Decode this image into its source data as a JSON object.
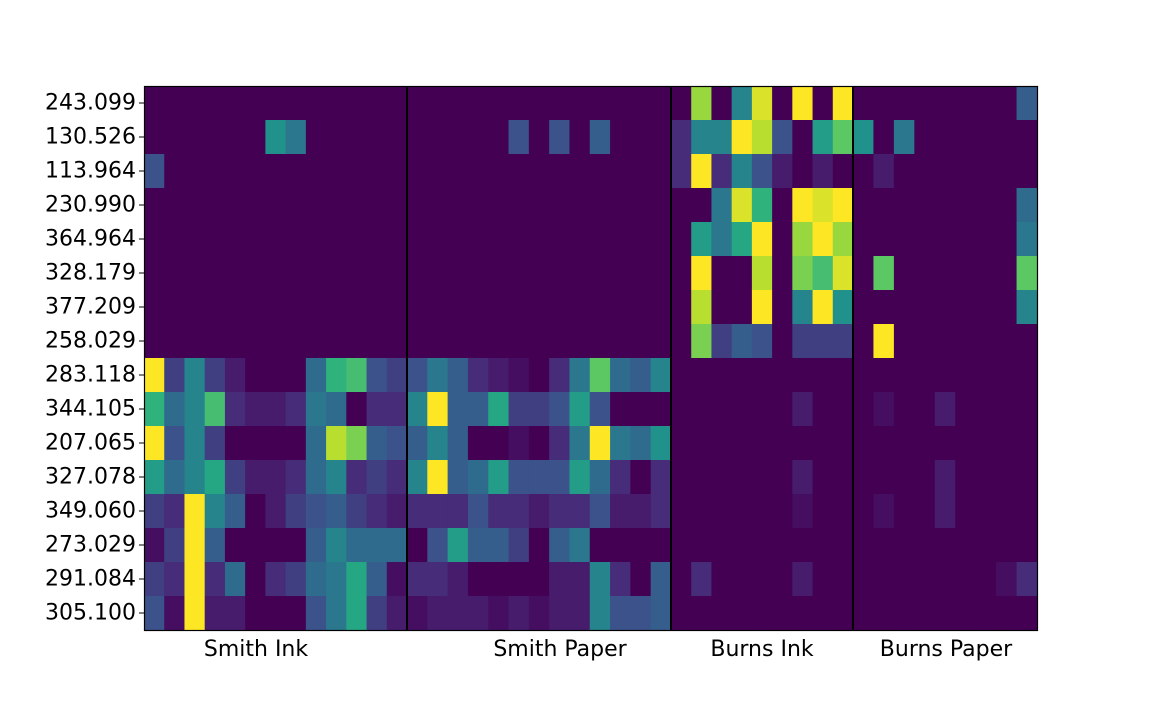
{
  "chart_data": {
    "type": "heatmap",
    "colormap": "viridis",
    "value_range": [
      0,
      1
    ],
    "row_labels": [
      "243.099",
      "130.526",
      "113.964",
      "230.990",
      "364.964",
      "328.179",
      "377.209",
      "258.029",
      "283.118",
      "344.105",
      "207.065",
      "327.078",
      "349.060",
      "273.029",
      "291.084",
      "305.100"
    ],
    "groups": [
      {
        "label": "Smith Ink",
        "columns": 13
      },
      {
        "label": "Smith Paper",
        "columns": 13
      },
      {
        "label": "Burns Ink",
        "columns": 9
      },
      {
        "label": "Burns Paper",
        "columns": 9
      }
    ],
    "values": [
      [
        0,
        0,
        0,
        0,
        0,
        0,
        0,
        0,
        0,
        0,
        0,
        0,
        0,
        0,
        0,
        0,
        0,
        0,
        0,
        0,
        0,
        0,
        0,
        0,
        0,
        0,
        0,
        0.85,
        0,
        0.45,
        0.95,
        0,
        1,
        0,
        1,
        0,
        0,
        0,
        0,
        0,
        0,
        0,
        0,
        0.3
      ],
      [
        0,
        0,
        0,
        0,
        0,
        0,
        0.5,
        0.4,
        0,
        0,
        0,
        0,
        0,
        0,
        0,
        0,
        0,
        0,
        0.25,
        0,
        0.25,
        0,
        0.3,
        0,
        0,
        0,
        0.15,
        0.45,
        0.45,
        1,
        0.9,
        0.25,
        0,
        0.55,
        0.75,
        0.5,
        0,
        0.4,
        0,
        0,
        0,
        0,
        0,
        0
      ],
      [
        0.25,
        0,
        0,
        0,
        0,
        0,
        0,
        0,
        0,
        0,
        0,
        0,
        0,
        0,
        0,
        0,
        0,
        0,
        0,
        0,
        0,
        0,
        0,
        0,
        0,
        0,
        0.15,
        1,
        0.15,
        0.45,
        0.25,
        0.1,
        0,
        0.1,
        0,
        0,
        0.1,
        0,
        0,
        0,
        0,
        0,
        0,
        0
      ],
      [
        0,
        0,
        0,
        0,
        0,
        0,
        0,
        0,
        0,
        0,
        0,
        0,
        0,
        0,
        0,
        0,
        0,
        0,
        0,
        0,
        0,
        0,
        0,
        0,
        0,
        0,
        0,
        0,
        0.4,
        0.95,
        0.65,
        0,
        1,
        0.95,
        1,
        0,
        0,
        0,
        0,
        0,
        0,
        0,
        0,
        0.35
      ],
      [
        0,
        0,
        0,
        0,
        0,
        0,
        0,
        0,
        0,
        0,
        0,
        0,
        0,
        0,
        0,
        0,
        0,
        0,
        0,
        0,
        0,
        0,
        0,
        0,
        0,
        0,
        0,
        0.55,
        0.4,
        0.6,
        1,
        0,
        0.85,
        1,
        0.85,
        0,
        0,
        0,
        0,
        0,
        0,
        0,
        0,
        0.4
      ],
      [
        0,
        0,
        0,
        0,
        0,
        0,
        0,
        0,
        0,
        0,
        0,
        0,
        0,
        0,
        0,
        0,
        0,
        0,
        0,
        0,
        0,
        0,
        0,
        0,
        0,
        0,
        0,
        1,
        0,
        0,
        0.9,
        0,
        0.8,
        0.7,
        0.95,
        0,
        0.75,
        0,
        0,
        0,
        0,
        0,
        0,
        0.75
      ],
      [
        0,
        0,
        0,
        0,
        0,
        0,
        0,
        0,
        0,
        0,
        0,
        0,
        0,
        0,
        0,
        0,
        0,
        0,
        0,
        0,
        0,
        0,
        0,
        0,
        0,
        0,
        0,
        0.9,
        0,
        0,
        1,
        0,
        0.45,
        1,
        0.5,
        0,
        0,
        0,
        0,
        0,
        0,
        0,
        0,
        0.45
      ],
      [
        0,
        0,
        0,
        0,
        0,
        0,
        0,
        0,
        0,
        0,
        0,
        0,
        0,
        0,
        0,
        0,
        0,
        0,
        0,
        0,
        0,
        0,
        0,
        0,
        0,
        0,
        0,
        0.8,
        0.2,
        0.3,
        0.25,
        0,
        0.2,
        0.2,
        0.2,
        0,
        1,
        0,
        0,
        0,
        0,
        0,
        0,
        0
      ],
      [
        1,
        0.2,
        0.45,
        0.2,
        0.1,
        0,
        0,
        0,
        0.35,
        0.65,
        0.7,
        0.25,
        0.2,
        0.25,
        0.4,
        0.3,
        0.15,
        0.1,
        0.05,
        0,
        0.15,
        0.4,
        0.75,
        0.35,
        0.3,
        0.45,
        0,
        0,
        0,
        0,
        0,
        0,
        0,
        0,
        0,
        0,
        0,
        0,
        0,
        0,
        0,
        0,
        0,
        0
      ],
      [
        0.65,
        0.35,
        0.45,
        0.7,
        0.15,
        0.1,
        0.1,
        0.15,
        0.4,
        0.35,
        0,
        0.15,
        0.15,
        0.45,
        1,
        0.3,
        0.3,
        0.6,
        0.2,
        0.2,
        0.25,
        0.55,
        0.25,
        0,
        0,
        0,
        0,
        0,
        0,
        0,
        0,
        0,
        0.1,
        0,
        0,
        0,
        0.05,
        0,
        0,
        0.1,
        0,
        0,
        0,
        0
      ],
      [
        1,
        0.25,
        0.45,
        0.2,
        0,
        0,
        0,
        0,
        0.35,
        0.9,
        0.8,
        0.3,
        0.25,
        0.3,
        0.45,
        0.3,
        0,
        0,
        0.05,
        0,
        0.15,
        0.4,
        1,
        0.4,
        0.35,
        0.5,
        0,
        0,
        0,
        0,
        0,
        0,
        0,
        0,
        0,
        0,
        0,
        0,
        0,
        0,
        0,
        0,
        0,
        0
      ],
      [
        0.55,
        0.35,
        0.45,
        0.6,
        0.2,
        0.1,
        0.1,
        0.15,
        0.35,
        0.45,
        0.15,
        0.2,
        0.15,
        0.45,
        1,
        0.3,
        0.35,
        0.55,
        0.25,
        0.25,
        0.25,
        0.55,
        0.35,
        0.15,
        0,
        0.15,
        0,
        0,
        0,
        0,
        0,
        0,
        0.1,
        0,
        0,
        0,
        0,
        0,
        0,
        0.1,
        0,
        0,
        0,
        0
      ],
      [
        0.2,
        0.15,
        1,
        0.45,
        0.3,
        0,
        0.1,
        0.2,
        0.25,
        0.3,
        0.2,
        0.15,
        0.1,
        0.15,
        0.15,
        0.15,
        0.25,
        0.15,
        0.15,
        0.1,
        0.15,
        0.15,
        0.25,
        0.1,
        0.1,
        0.15,
        0,
        0,
        0,
        0,
        0,
        0,
        0.05,
        0,
        0,
        0,
        0.05,
        0,
        0,
        0.1,
        0,
        0,
        0,
        0
      ],
      [
        0.05,
        0.2,
        1,
        0.3,
        0,
        0,
        0,
        0,
        0.3,
        0.45,
        0.35,
        0.35,
        0.35,
        0,
        0.25,
        0.55,
        0.3,
        0.3,
        0.2,
        0,
        0.3,
        0.4,
        0,
        0,
        0,
        0,
        0,
        0,
        0,
        0,
        0,
        0,
        0,
        0,
        0,
        0,
        0,
        0,
        0,
        0,
        0,
        0,
        0,
        0
      ],
      [
        0.2,
        0.15,
        1,
        0.15,
        0.35,
        0,
        0.15,
        0.2,
        0.35,
        0.4,
        0.6,
        0.3,
        0.05,
        0.15,
        0.15,
        0.1,
        0,
        0,
        0,
        0,
        0.1,
        0.1,
        0.45,
        0.15,
        0,
        0.3,
        0,
        0.15,
        0,
        0,
        0,
        0,
        0.1,
        0,
        0,
        0,
        0,
        0,
        0,
        0,
        0,
        0,
        0.05,
        0.15
      ],
      [
        0.25,
        0.05,
        1,
        0.1,
        0.1,
        0,
        0,
        0,
        0.25,
        0.4,
        0.6,
        0.2,
        0.1,
        0.05,
        0.1,
        0.1,
        0.1,
        0.05,
        0.1,
        0.05,
        0.1,
        0.1,
        0.45,
        0.25,
        0.25,
        0.3,
        0,
        0,
        0,
        0,
        0,
        0,
        0,
        0,
        0,
        0,
        0,
        0,
        0,
        0,
        0,
        0,
        0,
        0
      ]
    ]
  }
}
